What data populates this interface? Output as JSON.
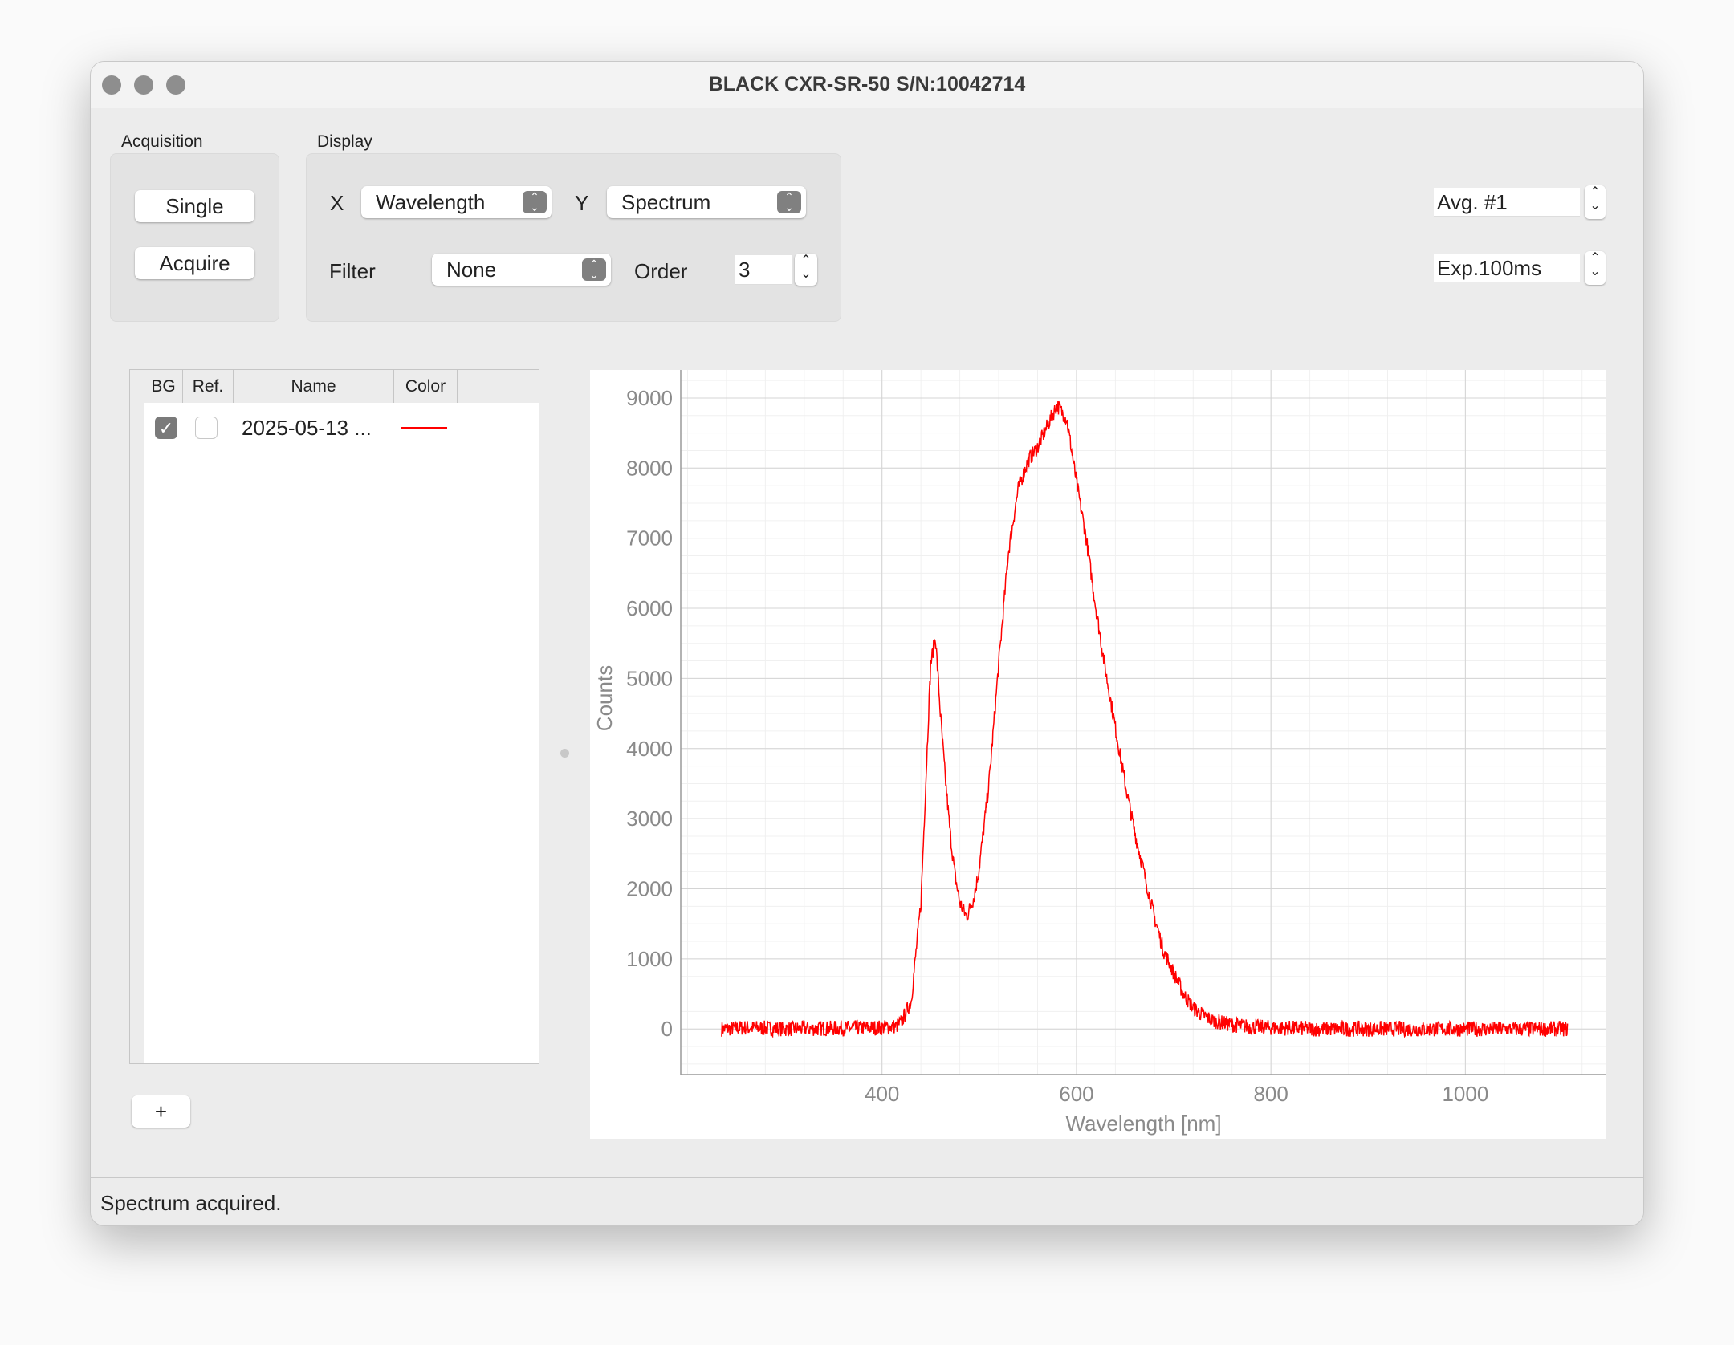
{
  "window": {
    "title": "BLACK CXR-SR-50 S/N:10042714"
  },
  "acquisition": {
    "label": "Acquisition",
    "single_label": "Single",
    "acquire_label": "Acquire"
  },
  "display": {
    "label": "Display",
    "x_label": "X",
    "x_value": "Wavelength",
    "y_label": "Y",
    "y_value": "Spectrum",
    "filter_label": "Filter",
    "filter_value": "None",
    "order_label": "Order",
    "order_value": "3"
  },
  "right_controls": {
    "avg_value": "Avg. #1",
    "exp_value": "Exp.100ms"
  },
  "table": {
    "columns": [
      "BG",
      "Ref.",
      "Name",
      "Color"
    ],
    "rows": [
      {
        "bg": true,
        "ref": false,
        "name": "2025-05-13 ...",
        "color": "#ff0000"
      }
    ]
  },
  "add_label": "+",
  "status": "Spectrum acquired.",
  "chart_data": {
    "type": "line",
    "xlabel": "Wavelength [nm]",
    "ylabel": "Counts",
    "xlim": [
      193,
      1145
    ],
    "ylim": [
      -650,
      9400
    ],
    "xticks": [
      400,
      600,
      800,
      1000
    ],
    "yticks": [
      0,
      1000,
      2000,
      3000,
      4000,
      5000,
      6000,
      7000,
      8000,
      9000
    ],
    "grid": true,
    "series": [
      {
        "color": "#ff0000",
        "x": [
          235,
          260,
          300,
          350,
          400,
          415,
          420,
          430,
          440,
          445,
          450,
          455,
          460,
          465,
          470,
          475,
          480,
          487,
          495,
          500,
          510,
          520,
          530,
          540,
          550,
          560,
          570,
          580,
          590,
          600,
          610,
          620,
          630,
          640,
          650,
          660,
          670,
          680,
          690,
          700,
          710,
          720,
          730,
          740,
          760,
          780,
          800,
          850,
          900,
          950,
          1000,
          1050,
          1105
        ],
        "y": [
          0,
          20,
          0,
          10,
          20,
          40,
          100,
          400,
          1800,
          3500,
          5200,
          5600,
          4500,
          3600,
          2800,
          2200,
          1800,
          1600,
          1900,
          2300,
          3500,
          5200,
          6800,
          7700,
          8100,
          8300,
          8600,
          8900,
          8700,
          7800,
          7000,
          6000,
          5100,
          4300,
          3500,
          2800,
          2200,
          1600,
          1100,
          800,
          500,
          300,
          200,
          120,
          60,
          30,
          20,
          0,
          0,
          0,
          0,
          0,
          0
        ]
      }
    ]
  }
}
